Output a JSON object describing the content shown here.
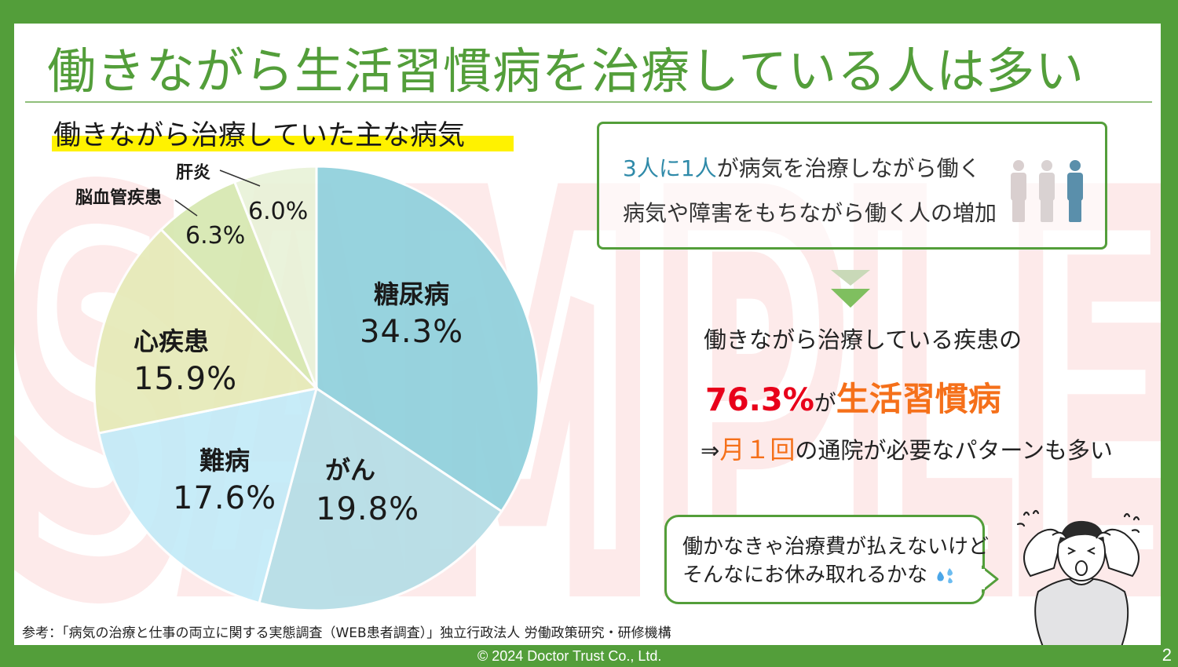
{
  "slide": {
    "title": "働きながら生活習慣病を治療している人は多い",
    "chart_heading": "働きながら治療していた主な病気",
    "watermark": "SAMPLE",
    "colors": {
      "brand_green": "#539e3a",
      "highlight_yellow": "#fff200",
      "accent_blue": "#2f8aa9",
      "accent_red": "#e8001a",
      "accent_orange": "#f5701a"
    }
  },
  "chart_data": {
    "type": "pie",
    "title": "働きながら治療していた主な病気",
    "start_angle": "12 o'clock",
    "direction": "clockwise",
    "categories": [
      "糖尿病",
      "がん",
      "難病",
      "心疾患",
      "脳血管疾患",
      "肝炎"
    ],
    "values": [
      34.3,
      19.8,
      17.6,
      15.9,
      6.3,
      6.0
    ],
    "labels": [
      "34.3%",
      "19.8%",
      "17.6%",
      "15.9%",
      "6.3%",
      "6.0%"
    ],
    "colors": [
      "#8fd0dc",
      "#b5dde6",
      "#c3ebf8",
      "#e6eab8",
      "#d6e8b0",
      "#e9f2d8"
    ],
    "legend": "none (direct labels)"
  },
  "info_box": {
    "line1_highlight": "3人に1人",
    "line1_rest": "が病気を治療しながら働く",
    "line2": "病気や障害をもちながら働く人の増加",
    "icon": "people-icon"
  },
  "stat": {
    "line1": "働きながら治療している疾患の",
    "pct": "76.3%",
    "connector": "が",
    "emphasis": "生活習慣病",
    "line3_prefix": "⇒",
    "line3_highlight": "月１回",
    "line3_rest": "の通院が必要なパターンも多い"
  },
  "speech_bubble": {
    "line1": "働かなきゃ治療費が払えないけど",
    "line2": "そんなにお休み取れるかな",
    "icon": "sweat-drops-icon"
  },
  "source": "参考：「病気の治療と仕事の両立に関する実態調査（WEB患者調査）」独立行政法人 労働政策研究・研修機構",
  "footer": {
    "copyright": "© 2024 Doctor Trust Co., Ltd.",
    "page_number": "2"
  }
}
